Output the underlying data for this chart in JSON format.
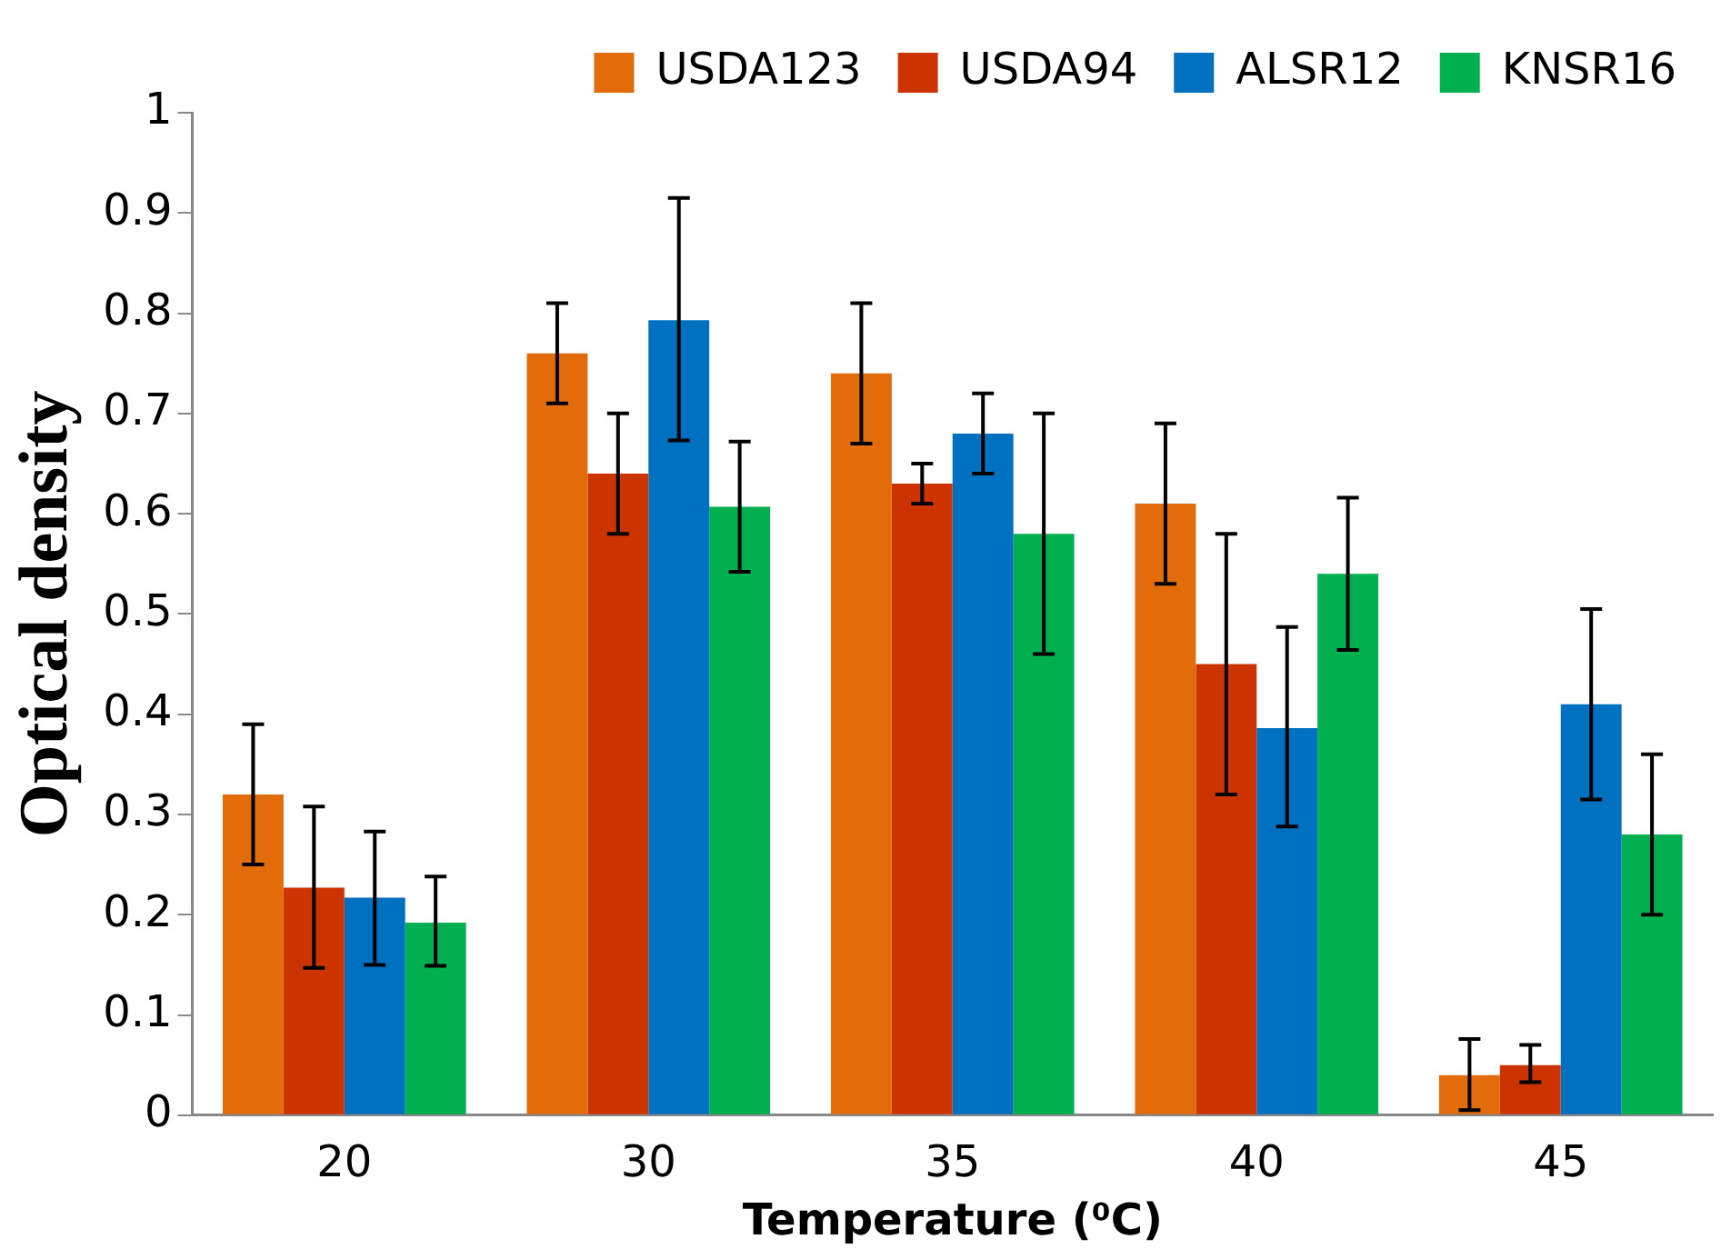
{
  "chart_data": {
    "type": "bar",
    "xlabel": "Temperature (⁰C)",
    "ylabel": "Optical density",
    "categories": [
      "20",
      "30",
      "35",
      "40",
      "45"
    ],
    "series": [
      {
        "name": "USDA123",
        "color": "#e36c0a",
        "values": [
          0.32,
          0.76,
          0.74,
          0.61,
          0.04
        ],
        "errors": [
          [
            0.25,
            0.39
          ],
          [
            0.71,
            0.81
          ],
          [
            0.67,
            0.81
          ],
          [
            0.53,
            0.69
          ],
          [
            0.005,
            0.076
          ]
        ]
      },
      {
        "name": "USDA94",
        "color": "#cc3300",
        "values": [
          0.227,
          0.64,
          0.63,
          0.45,
          0.05
        ],
        "errors": [
          [
            0.147,
            0.308
          ],
          [
            0.58,
            0.7
          ],
          [
            0.61,
            0.65
          ],
          [
            0.32,
            0.58
          ],
          [
            0.033,
            0.07
          ]
        ]
      },
      {
        "name": "ALSR12",
        "color": "#0070c0",
        "values": [
          0.217,
          0.793,
          0.68,
          0.386,
          0.41
        ],
        "errors": [
          [
            0.15,
            0.283
          ],
          [
            0.673,
            0.915
          ],
          [
            0.64,
            0.72
          ],
          [
            0.288,
            0.487
          ],
          [
            0.315,
            0.505
          ]
        ]
      },
      {
        "name": "KNSR16",
        "color": "#00b050",
        "values": [
          0.192,
          0.607,
          0.58,
          0.54,
          0.28
        ],
        "errors": [
          [
            0.149,
            0.238
          ],
          [
            0.542,
            0.672
          ],
          [
            0.46,
            0.7
          ],
          [
            0.464,
            0.616
          ],
          [
            0.2,
            0.36
          ]
        ]
      }
    ],
    "ylim": [
      0,
      1
    ],
    "yticks": [
      0,
      0.1,
      0.2,
      0.3,
      0.4,
      0.5,
      0.6,
      0.7,
      0.8,
      0.9,
      1
    ],
    "grid": false,
    "legend": "top right"
  }
}
